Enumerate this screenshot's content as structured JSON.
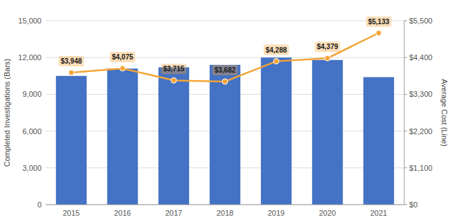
{
  "chart_data": {
    "type": "bar",
    "categories": [
      "2015",
      "2016",
      "2017",
      "2018",
      "2019",
      "2020",
      "2021"
    ],
    "ylabel": "Completed Investigations (Bars)",
    "y2label": "Average Cost (Line)",
    "ylim": [
      0,
      15000
    ],
    "yticks": [
      0,
      {
        "value": 3000,
        "label": "3,000"
      },
      {
        "value": 6000,
        "label": "6,000"
      },
      {
        "value": 9000,
        "label": "9,000"
      },
      {
        "value": 12000,
        "label": "12,000"
      },
      {
        "value": 15000,
        "label": "15,000"
      }
    ],
    "y2lim": [
      0,
      5500
    ],
    "y2ticks": [
      {
        "value": 0,
        "label": "$0"
      },
      {
        "value": 1100,
        "label": "$1,100"
      },
      {
        "value": 2200,
        "label": "$2,200"
      },
      {
        "value": 3300,
        "label": "$3,300"
      },
      {
        "value": 4400,
        "label": "$4,400"
      },
      {
        "value": 5500,
        "label": "$5,500"
      }
    ],
    "grid": true,
    "series": [
      {
        "type": "bar",
        "color": "#4472C4",
        "values": [
          10500,
          11100,
          11200,
          11400,
          12000,
          11800,
          10400
        ]
      },
      {
        "type": "line",
        "axis": "y2",
        "color": "#F4A436",
        "marker": "circle",
        "data_labels": true,
        "values": [
          3948,
          4075,
          3715,
          3682,
          4288,
          4379,
          5133
        ],
        "value_labels": [
          "$3,948",
          "$4,075",
          "$3,715",
          "$3,682",
          "$4,288",
          "$4,379",
          "$5,133"
        ]
      }
    ]
  }
}
